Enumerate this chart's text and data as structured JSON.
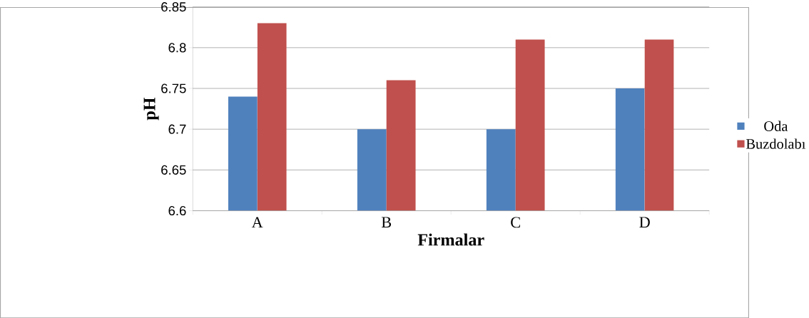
{
  "chart_data": {
    "type": "bar",
    "xlabel": "Firmalar",
    "ylabel": "pH",
    "categories": [
      "A",
      "B",
      "C",
      "D"
    ],
    "series": [
      {
        "name": "Oda",
        "color": "#4f81bd",
        "values": [
          6.74,
          6.7,
          6.7,
          6.75
        ]
      },
      {
        "name": "Buzdolabı",
        "color": "#c0504d",
        "values": [
          6.83,
          6.76,
          6.81,
          6.81
        ]
      }
    ],
    "ylim": [
      6.6,
      6.85
    ],
    "yticks": [
      6.6,
      6.65,
      6.7,
      6.75,
      6.8,
      6.85
    ],
    "grid": "y",
    "legend": "right"
  }
}
